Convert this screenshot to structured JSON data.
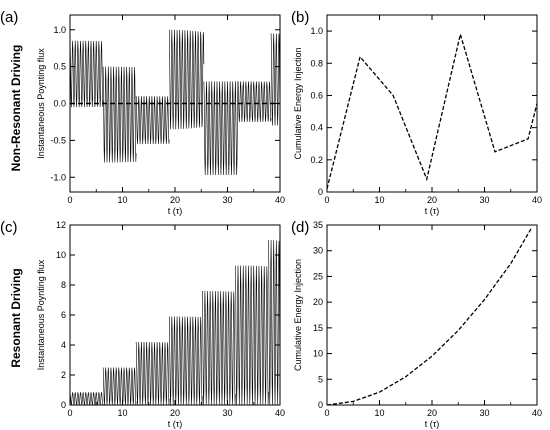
{
  "row_labels": [
    "Non-Resonant Driving",
    "Resonant Driving"
  ],
  "chart_data": [
    {
      "panel": "(a)",
      "type": "line",
      "xlabel": "t (τ)",
      "ylabel": "Instantaneous Poynting flux",
      "xlim": [
        0,
        40
      ],
      "ylim": [
        -1.2,
        1.2
      ],
      "xticks": [
        0,
        10,
        20,
        30,
        40
      ],
      "yticks": [
        -1.0,
        -0.5,
        0.0,
        0.5,
        1.0
      ],
      "ytick_labels": [
        "-1.0",
        "-0.5",
        "0.0",
        "0.5",
        "1.0"
      ],
      "reference_line": {
        "y": 0.0,
        "style": "dashed"
      },
      "oscillation_period": 0.5,
      "segments": [
        {
          "t0": 0,
          "t1": 6.3,
          "upper": 0.85,
          "lower": -0.05
        },
        {
          "t0": 6.3,
          "t1": 12.6,
          "upper": 0.5,
          "lower": -0.8
        },
        {
          "t0": 12.6,
          "t1": 18.9,
          "upper": 0.1,
          "lower": -0.55
        },
        {
          "t0": 18.9,
          "t1": 25.5,
          "upper": 1.0,
          "lower": -0.35
        },
        {
          "t0": 25.5,
          "t1": 32.0,
          "upper": 0.3,
          "lower": -0.97
        },
        {
          "t0": 32.0,
          "t1": 38.3,
          "upper": 0.3,
          "lower": -0.25
        },
        {
          "t0": 38.3,
          "t1": 40.0,
          "upper": 0.95,
          "lower": -0.3
        }
      ]
    },
    {
      "panel": "(b)",
      "type": "line",
      "xlabel": "t (τ)",
      "ylabel": "Cumulative Energy Injection",
      "xlim": [
        0,
        40
      ],
      "ylim": [
        0,
        1.1
      ],
      "xticks": [
        0,
        10,
        20,
        30,
        40
      ],
      "yticks": [
        0,
        0.2,
        0.4,
        0.6,
        0.8,
        1.0
      ],
      "ytick_labels": [
        "0",
        "0.2",
        "0.4",
        "0.6",
        "0.8",
        "1.0"
      ],
      "x": [
        0,
        6.3,
        12.6,
        19.0,
        25.4,
        32.0,
        38.3,
        40.0
      ],
      "y": [
        0.02,
        0.84,
        0.6,
        0.08,
        0.98,
        0.25,
        0.33,
        0.55
      ]
    },
    {
      "panel": "(c)",
      "type": "line",
      "xlabel": "t (τ)",
      "ylabel": "Instantaneous Poynting flux",
      "xlim": [
        0,
        40
      ],
      "ylim": [
        0,
        12
      ],
      "xticks": [
        0,
        10,
        20,
        30,
        40
      ],
      "yticks": [
        0,
        2,
        4,
        6,
        8,
        10,
        12
      ],
      "ytick_labels": [
        "0",
        "2",
        "4",
        "6",
        "8",
        "10",
        "12"
      ],
      "oscillation_period": 0.5,
      "segments": [
        {
          "t0": 0,
          "t1": 6.3,
          "upper": 0.85,
          "lower": 0
        },
        {
          "t0": 6.3,
          "t1": 12.6,
          "upper": 2.5,
          "lower": 0
        },
        {
          "t0": 12.6,
          "t1": 18.9,
          "upper": 4.2,
          "lower": 0
        },
        {
          "t0": 18.9,
          "t1": 25.2,
          "upper": 5.9,
          "lower": 0
        },
        {
          "t0": 25.2,
          "t1": 31.5,
          "upper": 7.6,
          "lower": 0
        },
        {
          "t0": 31.5,
          "t1": 37.8,
          "upper": 9.3,
          "lower": 0
        },
        {
          "t0": 37.8,
          "t1": 40.0,
          "upper": 11.0,
          "lower": 0
        }
      ]
    },
    {
      "panel": "(d)",
      "type": "line",
      "xlabel": "t (τ)",
      "ylabel": "Cumulative Energy Injection",
      "xlim": [
        0,
        40
      ],
      "ylim": [
        0,
        35
      ],
      "xticks": [
        0,
        10,
        20,
        30,
        40
      ],
      "yticks": [
        0,
        5,
        10,
        15,
        20,
        25,
        30,
        35
      ],
      "ytick_labels": [
        "0",
        "5",
        "10",
        "15",
        "20",
        "25",
        "30",
        "35"
      ],
      "x": [
        0,
        5,
        10,
        15,
        20,
        25,
        30,
        35,
        39
      ],
      "y": [
        0,
        0.7,
        2.5,
        5.5,
        9.5,
        14.5,
        20.5,
        27.5,
        34.5
      ]
    }
  ]
}
